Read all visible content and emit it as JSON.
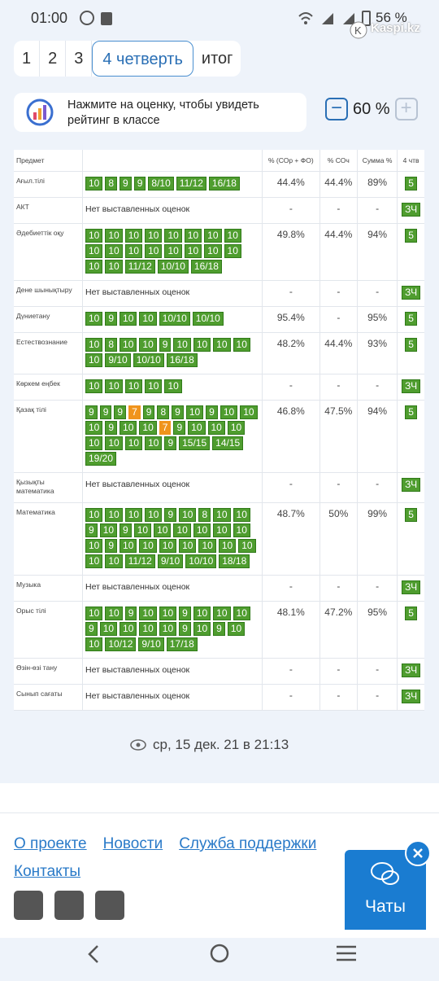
{
  "status": {
    "time": "01:00",
    "battery": "56 %",
    "watermark": "Kaspi.kz"
  },
  "tabs": [
    "1",
    "2",
    "3",
    "4 четверть",
    "итог"
  ],
  "info": {
    "hint": "Нажмите на оценку, чтобы увидеть рейтинг в классе",
    "zoom": "60 %"
  },
  "table": {
    "headers": [
      "Предмет",
      "% (СОр + ФО)",
      "% СОч",
      "Сумма %",
      "4 чтв"
    ],
    "rows": [
      {
        "subject": "Ағыл.тілі",
        "grades": [
          "10",
          "8",
          "9",
          "9",
          "8/10",
          "11/12",
          "16/18"
        ],
        "sor": "44.4%",
        "soch": "44.4%",
        "sum": "89%",
        "quarter": "5"
      },
      {
        "subject": "АКТ",
        "note": "Нет выставленных оценок",
        "sor": "-",
        "soch": "-",
        "sum": "-",
        "quarter": "ЗЧ"
      },
      {
        "subject": "Әдебиеттік оқу",
        "grades": [
          "10",
          "10",
          "10",
          "10",
          "10",
          "10",
          "10",
          "10",
          "10",
          "10",
          "10",
          "10",
          "10",
          "10",
          "10",
          "10",
          "10",
          "10",
          "11/12",
          "10/10",
          "16/18"
        ],
        "sor": "49.8%",
        "soch": "44.4%",
        "sum": "94%",
        "quarter": "5"
      },
      {
        "subject": "Дене шынықтыру",
        "note": "Нет выставленных оценок",
        "sor": "-",
        "soch": "-",
        "sum": "-",
        "quarter": "ЗЧ"
      },
      {
        "subject": "Дүниетану",
        "grades": [
          "10",
          "9",
          "10",
          "10",
          "10/10",
          "10/10"
        ],
        "sor": "95.4%",
        "soch": "-",
        "sum": "95%",
        "quarter": "5"
      },
      {
        "subject": "Естествознание",
        "grades": [
          "10",
          "8",
          "10",
          "10",
          "9",
          "10",
          "10",
          "10",
          "10",
          "10",
          "9/10",
          "10/10",
          "16/18"
        ],
        "sor": "48.2%",
        "soch": "44.4%",
        "sum": "93%",
        "quarter": "5"
      },
      {
        "subject": "Көркем еңбек",
        "grades": [
          "10",
          "10",
          "10",
          "10",
          "10"
        ],
        "sor": "-",
        "soch": "-",
        "sum": "-",
        "quarter": "ЗЧ"
      },
      {
        "subject": "Қазақ тілі",
        "grades": [
          "9",
          "9",
          "9",
          {
            "text": "7",
            "color": "#f0941c"
          },
          "9",
          "8",
          "9",
          "10",
          "9",
          "10",
          "10",
          "10",
          "9",
          "10",
          "10",
          {
            "text": "7",
            "color": "#f0941c"
          },
          "9",
          "10",
          "10",
          "10",
          "10",
          "10",
          "10",
          "10",
          "9",
          "15/15",
          "14/15",
          "19/20"
        ],
        "sor": "46.8%",
        "soch": "47.5%",
        "sum": "94%",
        "quarter": "5"
      },
      {
        "subject": "Қызықты математика",
        "note": "Нет выставленных оценок",
        "sor": "-",
        "soch": "-",
        "sum": "-",
        "quarter": "ЗЧ"
      },
      {
        "subject": "Математика",
        "grades": [
          "10",
          "10",
          "10",
          "10",
          "9",
          "10",
          "8",
          "10",
          "10",
          "9",
          "10",
          "9",
          "10",
          "10",
          "10",
          "10",
          "10",
          "10",
          "10",
          "9",
          "10",
          "10",
          "10",
          "10",
          "10",
          "10",
          "10",
          "10",
          "10",
          "11/12",
          "9/10",
          "10/10",
          "18/18"
        ],
        "sor": "48.7%",
        "soch": "50%",
        "sum": "99%",
        "quarter": "5"
      },
      {
        "subject": "Музыка",
        "note": "Нет выставленных оценок",
        "sor": "-",
        "soch": "-",
        "sum": "-",
        "quarter": "ЗЧ"
      },
      {
        "subject": "Орыс тілі",
        "grades": [
          "10",
          "10",
          "9",
          "10",
          "10",
          "9",
          "10",
          "10",
          "10",
          "9",
          "10",
          "10",
          "10",
          "10",
          "9",
          "10",
          "9",
          "10",
          "10",
          "10/12",
          "9/10",
          "17/18"
        ],
        "sor": "48.1%",
        "soch": "47.2%",
        "sum": "95%",
        "quarter": "5"
      },
      {
        "subject": "Өзін-өзі тану",
        "note": "Нет выставленных оценок",
        "sor": "-",
        "soch": "-",
        "sum": "-",
        "quarter": "ЗЧ"
      },
      {
        "subject": "Сынып сағаты",
        "note": "Нет выставленных оценок",
        "sor": "-",
        "soch": "-",
        "sum": "-",
        "quarter": "ЗЧ"
      }
    ]
  },
  "updated": "ср, 15 дек. 21 в 21:13",
  "footer": {
    "links": [
      "О проекте",
      "Новости",
      "Служба поддержки",
      "Контакты"
    ]
  },
  "chat": "Чаты"
}
